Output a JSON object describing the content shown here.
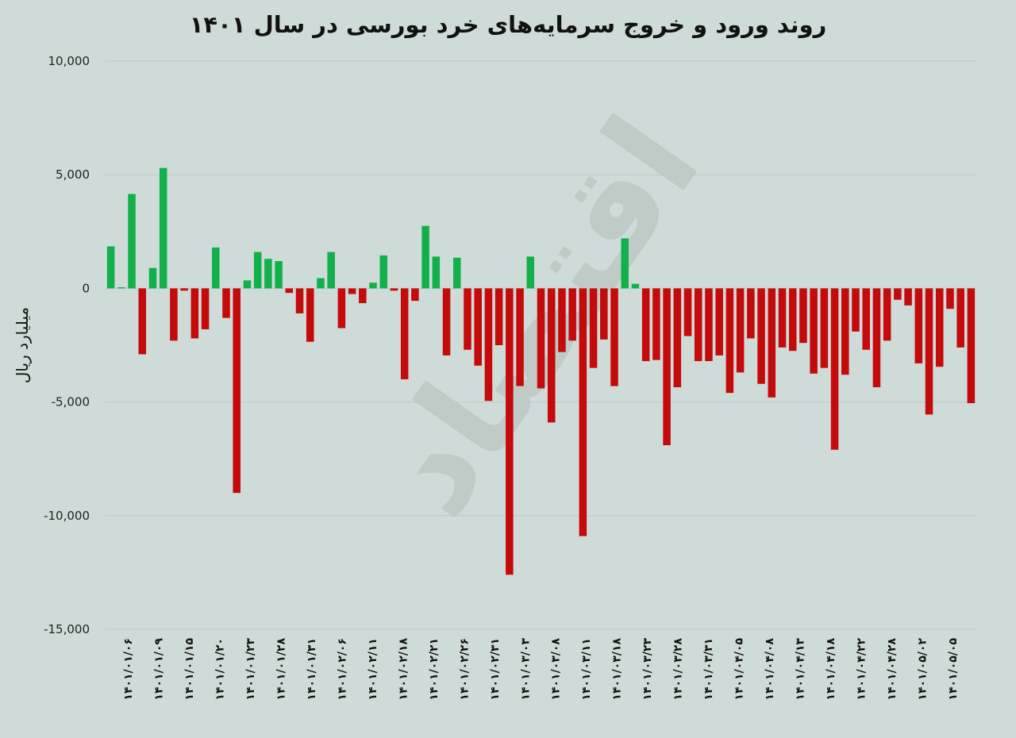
{
  "chart_data": {
    "type": "bar",
    "title": "روند ورود و خروج سرمایه‌های خرد بورسی در سال ۱۴۰۱",
    "ylabel": "میلیارد ریال",
    "xlabel": "",
    "ylim": [
      -15000,
      10000
    ],
    "yticks": [
      10000,
      5000,
      0,
      -5000,
      -10000,
      -15000
    ],
    "ytick_labels": [
      "10,000",
      "5,000",
      "0",
      "-5,000",
      "-10,000",
      "-15,000"
    ],
    "grid": true,
    "colors": {
      "positive": "#12b04a",
      "negative": "#c40a0a"
    },
    "xtick_labels": [
      "۱۴۰۱/۰۱/۰۶",
      "۱۴۰۱/۰۱/۰۹",
      "۱۴۰۱/۰۱/۱۵",
      "۱۴۰۱/۰۱/۲۰",
      "۱۴۰۱/۰۱/۲۳",
      "۱۴۰۱/۰۱/۲۸",
      "۱۴۰۱/۰۱/۳۱",
      "۱۴۰۱/۰۲/۰۶",
      "۱۴۰۱/۰۲/۱۱",
      "۱۴۰۱/۰۲/۱۸",
      "۱۴۰۱/۰۲/۲۱",
      "۱۴۰۱/۰۲/۲۶",
      "۱۴۰۱/۰۲/۳۱",
      "۱۴۰۱/۰۳/۰۳",
      "۱۴۰۱/۰۳/۰۸",
      "۱۴۰۱/۰۳/۱۱",
      "۱۴۰۱/۰۳/۱۸",
      "۱۴۰۱/۰۳/۲۳",
      "۱۴۰۱/۰۳/۲۸",
      "۱۴۰۱/۰۳/۳۱",
      "۱۴۰۱/۰۴/۰۵",
      "۱۴۰۱/۰۴/۰۸",
      "۱۴۰۱/۰۴/۱۳",
      "۱۴۰۱/۰۴/۱۸",
      "۱۴۰۱/۰۴/۲۲",
      "۱۴۰۱/۰۴/۲۸",
      "۱۴۰۱/۰۵/۰۲",
      "۱۴۰۱/۰۵/۰۵"
    ],
    "values": [
      1850,
      50,
      4150,
      -2900,
      900,
      5300,
      -2300,
      -100,
      -2200,
      -1800,
      1800,
      -1300,
      -9000,
      350,
      1600,
      1300,
      1200,
      -200,
      -1100,
      -2350,
      450,
      1600,
      -1750,
      -250,
      -650,
      250,
      1450,
      -100,
      -4000,
      -550,
      2750,
      1400,
      -2950,
      1350,
      -2700,
      -3400,
      -4950,
      -2500,
      -12600,
      -4300,
      1400,
      -4400,
      -5900,
      -2800,
      -2300,
      -10900,
      -3500,
      -2250,
      -4300,
      2200,
      200,
      -3200,
      -3150,
      -6900,
      -4350,
      -2100,
      -3200,
      -3200,
      -2950,
      -4600,
      -3700,
      -2200,
      -4200,
      -4800,
      -2600,
      -2750,
      -2400,
      -3750,
      -3500,
      -7100,
      -3800,
      -1900,
      -2700,
      -4350,
      -2300,
      -500,
      -750,
      -3300,
      -5550,
      -3450,
      -900,
      -2600,
      -5050
    ]
  },
  "watermark": "اقتصاد"
}
